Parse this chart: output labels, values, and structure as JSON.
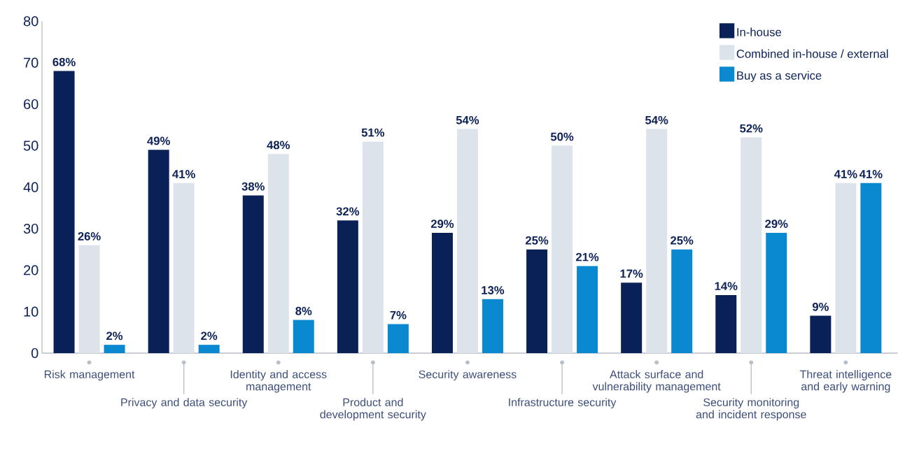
{
  "chart_data": {
    "type": "bar",
    "categories": [
      "Risk management",
      "Privacy and data security",
      "Identity and access management",
      "Product and development security",
      "Security awareness",
      "Infrastructure security",
      "Attack surface and vulnerability management",
      "Security monitoring and incident response",
      "Threat intelligence and early warning"
    ],
    "series": [
      {
        "name": "In-house",
        "color": "#0a2158",
        "values": [
          68,
          49,
          38,
          32,
          29,
          25,
          17,
          14,
          9
        ],
        "value_labels": [
          "68%",
          "49%",
          "38%",
          "32%",
          "29%",
          "25%",
          "17%",
          "14%",
          "9%"
        ]
      },
      {
        "name": "Combined in-house / external",
        "color": "#dde3ea",
        "values": [
          26,
          41,
          48,
          51,
          54,
          50,
          54,
          52,
          41
        ],
        "value_labels": [
          "26%",
          "41%",
          "48%",
          "51%",
          "54%",
          "50%",
          "54%",
          "52%",
          "41%"
        ]
      },
      {
        "name": "Buy as a service",
        "color": "#0a88d0",
        "values": [
          2,
          2,
          8,
          7,
          13,
          21,
          25,
          29,
          41
        ],
        "value_labels": [
          "2%",
          "2%",
          "8%",
          "7%",
          "13%",
          "21%",
          "25%",
          "29%",
          "41%"
        ]
      }
    ],
    "ylim": [
      0,
      80
    ],
    "yticks": [
      0,
      10,
      20,
      30,
      40,
      50,
      60,
      70,
      80
    ],
    "legend": "top right",
    "grid": false
  }
}
